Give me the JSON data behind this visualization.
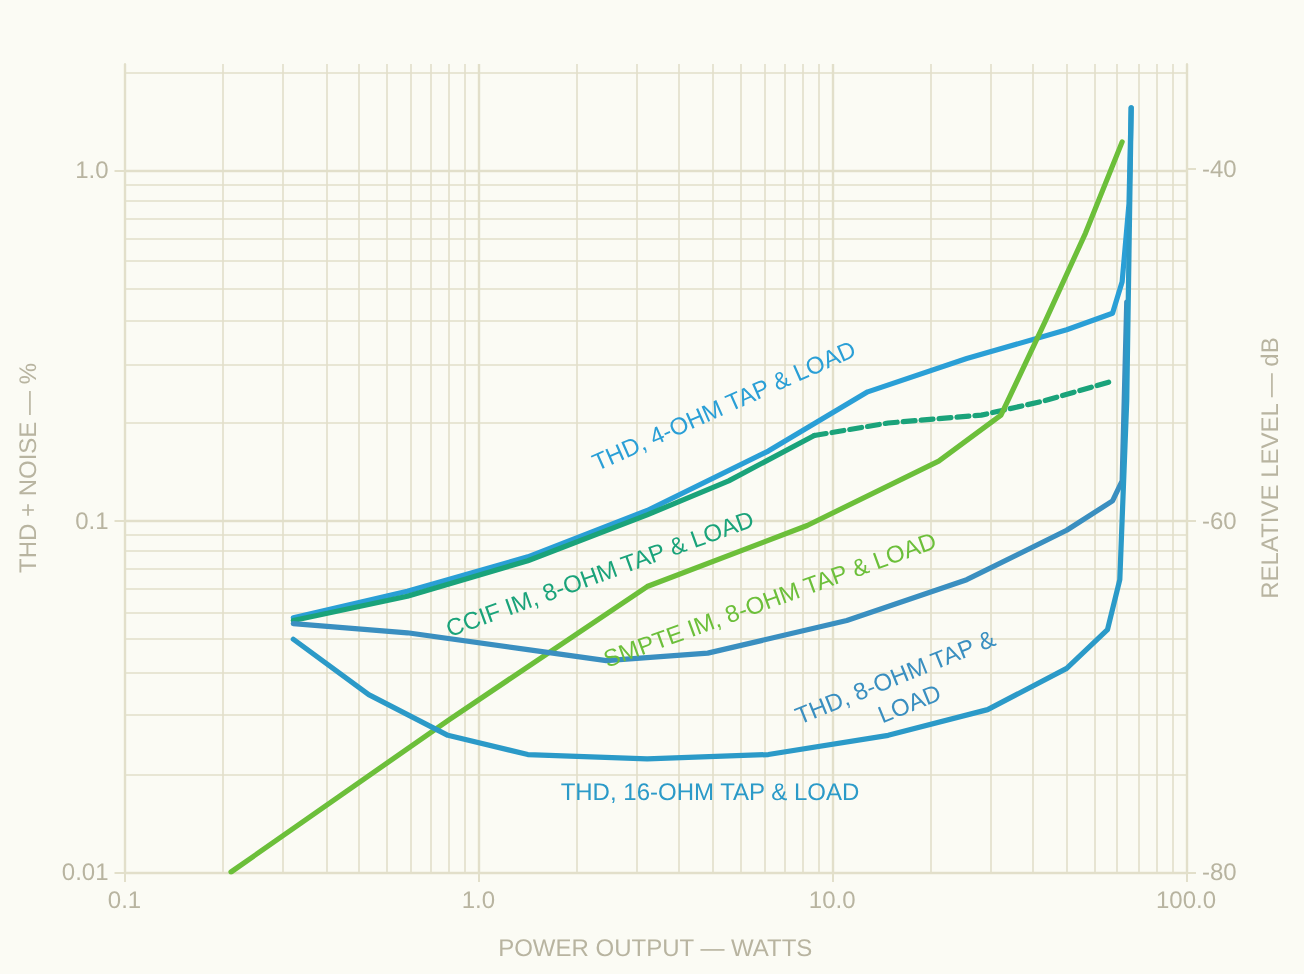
{
  "chart_data": {
    "type": "line",
    "xlabel": "POWER OUTPUT — WATTS",
    "ylabel": "THD + NOISE — %",
    "y2label": "RELATIVE LEVEL — dB",
    "log": "xy",
    "grid": true,
    "legend": false,
    "marker": "none",
    "xlim": [
      0.1,
      100
    ],
    "xticks": [
      0.1,
      {
        "value": 1,
        "label": "1.0"
      },
      {
        "value": 10,
        "label": "10.0"
      },
      {
        "value": 100,
        "label": "100.0"
      }
    ],
    "ylim": [
      0.01,
      2
    ],
    "yticks": [
      0.01,
      0.1,
      {
        "value": 1,
        "label": "1.0"
      }
    ],
    "y2lim": [
      -80,
      -34
    ],
    "y2ticks": [
      -80,
      -60,
      -40
    ],
    "series": [
      {
        "name": "THD, 4-OHM TAP & LOAD",
        "color": "#2a9fd6",
        "x": [
          0.3,
          0.63,
          1.38,
          3.0,
          6.6,
          12.6,
          24,
          46,
          62,
          66,
          69,
          70
        ],
        "values": [
          0.053,
          0.063,
          0.079,
          0.107,
          0.158,
          0.233,
          0.29,
          0.35,
          0.39,
          0.48,
          0.8,
          1.5
        ]
      },
      {
        "name": "CCIF IM, 8-OHM TAP & LOAD",
        "color": "#1aa37a",
        "x": [
          0.3,
          0.63,
          1.38,
          3.0,
          5.1,
          8.9
        ],
        "values": [
          0.052,
          0.061,
          0.077,
          0.104,
          0.13,
          0.175
        ]
      },
      {
        "color": "#1aa37a",
        "line_style": "dashed",
        "x": [
          8.9,
          14.4,
          26.4,
          40,
          62
        ],
        "values": [
          0.175,
          0.19,
          0.2,
          0.22,
          0.25
        ]
      },
      {
        "name": "SMPTE IM, 8-OHM TAP & LOAD",
        "color": "#6cbf3a",
        "x": [
          0.2,
          0.82,
          3.0,
          8.5,
          20,
          30,
          40,
          52,
          66
        ],
        "values": [
          0.01,
          0.027,
          0.065,
          0.097,
          0.148,
          0.2,
          0.37,
          0.66,
          1.2
        ]
      },
      {
        "name": "THD, 8-OHM TAP & LOAD",
        "color": "#3a8fc0",
        "x": [
          0.3,
          0.63,
          1.38,
          2.3,
          4.45,
          11,
          24,
          46,
          62,
          66,
          68
        ],
        "values": [
          0.051,
          0.048,
          0.043,
          0.04,
          0.042,
          0.052,
          0.068,
          0.094,
          0.114,
          0.13,
          0.42
        ]
      },
      {
        "name": "THD, 16-OHM TAP & LOAD",
        "color": "#2b9ac8",
        "x": [
          0.3,
          0.49,
          0.82,
          1.38,
          3.0,
          6.6,
          14.4,
          27.5,
          46,
          60,
          65,
          68,
          70
        ],
        "values": [
          0.046,
          0.032,
          0.0245,
          0.0216,
          0.021,
          0.0216,
          0.0245,
          0.029,
          0.038,
          0.049,
          0.068,
          0.22,
          1.5
        ]
      }
    ]
  }
}
